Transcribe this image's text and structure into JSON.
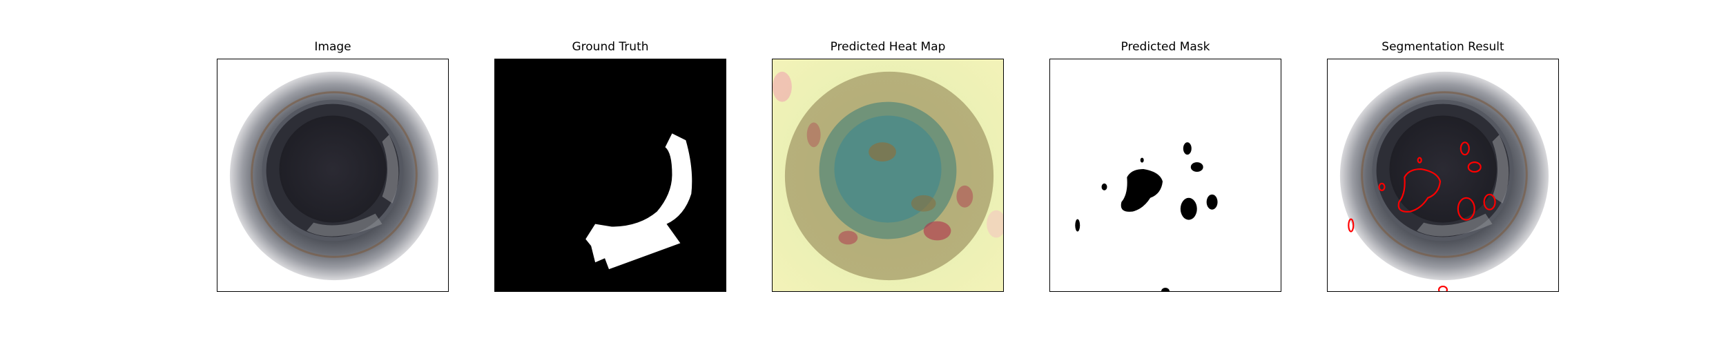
{
  "panels": [
    {
      "title": "Image"
    },
    {
      "title": "Ground Truth"
    },
    {
      "title": "Predicted Heat Map"
    },
    {
      "title": "Predicted Mask"
    },
    {
      "title": "Segmentation Result"
    }
  ],
  "colors": {
    "background": "#ffffff",
    "contour": "#ff0000",
    "mask_fg": "#ffffff",
    "mask_bg": "#000000"
  }
}
